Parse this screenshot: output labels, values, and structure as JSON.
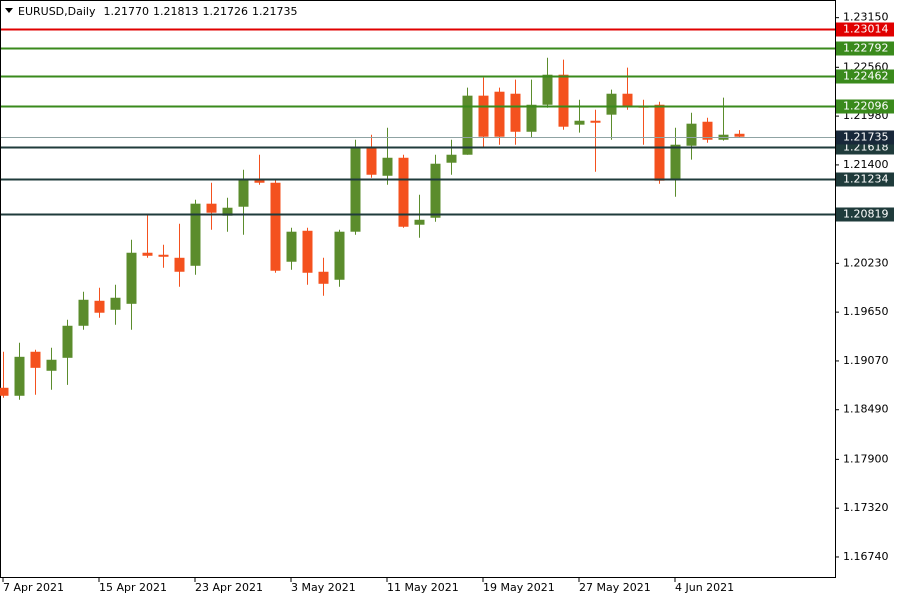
{
  "chart_data": {
    "type": "candlestick",
    "title": "EURUSD,Daily",
    "ohlc_labels": [
      "1.21770",
      "1.21813",
      "1.21726",
      "1.21735"
    ],
    "categories": [
      "7 Apr 2021",
      null,
      null,
      null,
      null,
      null,
      "15 Apr 2021",
      null,
      null,
      null,
      null,
      null,
      "23 Apr 2021",
      null,
      null,
      null,
      null,
      null,
      "3 May 2021",
      null,
      null,
      null,
      null,
      null,
      "11 May 2021",
      null,
      null,
      null,
      null,
      null,
      "19 May 2021",
      null,
      null,
      null,
      null,
      null,
      "27 May 2021",
      null,
      null,
      null,
      null,
      null,
      "4 Jun 2021",
      null,
      null,
      null,
      null
    ],
    "open": [
      1.18751,
      1.18656,
      1.19179,
      1.18953,
      1.19107,
      1.19488,
      1.19785,
      1.19678,
      1.19749,
      1.20356,
      1.20332,
      1.20296,
      1.20201,
      1.20939,
      1.20796,
      1.20903,
      1.21224,
      1.21188,
      1.20249,
      1.20617,
      1.2013,
      1.20035,
      1.20606,
      1.21616,
      1.21271,
      1.21485,
      1.20689,
      1.20772,
      1.21426,
      1.21521,
      1.22223,
      1.2227,
      1.22246,
      1.21794,
      1.22115,
      1.22472,
      1.21878,
      1.21925,
      1.21997,
      1.22246,
      1.22104,
      1.22115,
      1.21236,
      1.21628,
      1.21913,
      1.21699,
      1.2177
    ],
    "high": [
      1.19179,
      1.19286,
      1.19203,
      1.19226,
      1.19559,
      1.19892,
      1.1994,
      1.19975,
      1.2051,
      1.2082,
      1.20451,
      1.20701,
      1.20986,
      1.21188,
      1.2101,
      1.21343,
      1.21521,
      1.21224,
      1.20653,
      1.20653,
      1.20296,
      1.20629,
      1.21699,
      1.21759,
      1.21842,
      1.21521,
      1.21045,
      1.21521,
      1.21699,
      1.22318,
      1.22437,
      1.22318,
      1.22413,
      1.22413,
      1.22674,
      1.22651,
      1.22175,
      1.22056,
      1.22294,
      1.22556,
      1.22175,
      1.22151,
      1.21842,
      1.2202,
      1.21961,
      1.22199,
      1.21813
    ],
    "low": [
      1.18632,
      1.18608,
      1.18668,
      1.18727,
      1.18786,
      1.19441,
      1.19583,
      1.195,
      1.19441,
      1.20296,
      1.20178,
      1.19952,
      1.20094,
      1.20629,
      1.20606,
      1.2057,
      1.21164,
      1.20118,
      1.20154,
      1.19975,
      1.19845,
      1.19952,
      1.2057,
      1.21248,
      1.21164,
      1.20653,
      1.20534,
      1.20724,
      1.21283,
      1.21521,
      1.21604,
      1.2164,
      1.2164,
      1.21723,
      1.2208,
      1.21818,
      1.21783,
      1.21319,
      1.21699,
      1.22056,
      1.2164,
      1.21176,
      1.21022,
      1.21462,
      1.21664,
      1.21688,
      1.21726
    ],
    "close": [
      1.18656,
      1.19119,
      1.18988,
      1.19084,
      1.19488,
      1.19797,
      1.19643,
      1.19821,
      1.20356,
      1.2032,
      1.2032,
      1.2013,
      1.20939,
      1.20832,
      1.20891,
      1.21224,
      1.21188,
      1.20142,
      1.20606,
      1.20118,
      1.19987,
      1.20606,
      1.21616,
      1.21283,
      1.21485,
      1.20665,
      1.20748,
      1.21414,
      1.21521,
      1.22223,
      1.21735,
      1.21735,
      1.21794,
      1.22115,
      1.22472,
      1.21854,
      1.21925,
      1.21902,
      1.22246,
      1.22104,
      1.2208,
      1.21212,
      1.2164,
      1.2189,
      1.21699,
      1.21759,
      1.21735
    ],
    "up_color": "#5b8c2c",
    "down_color": "#f4511e",
    "levels": [
      {
        "value": 1.23014,
        "color": "#e00000"
      },
      {
        "value": 1.22792,
        "color": "#3a8a1c"
      },
      {
        "value": 1.22462,
        "color": "#3a8a1c"
      },
      {
        "value": 1.22096,
        "color": "#3a8a1c"
      },
      {
        "value": 1.21618,
        "color": "#1f3b3b"
      },
      {
        "value": 1.21234,
        "color": "#1f3b3b"
      },
      {
        "value": 1.20819,
        "color": "#1f3b3b"
      }
    ],
    "price_line_color": "#8fa3a3",
    "price_label_color": "#18283a",
    "ylim": [
      1.1649,
      1.2336
    ],
    "yticks": [
      {
        "value": 1.2315,
        "label": "1.23150"
      },
      {
        "value": 1.2256,
        "label": "1.22560"
      },
      {
        "value": 1.2198,
        "label": "1.21980"
      },
      {
        "value": 1.214,
        "label": "1.21400"
      },
      {
        "value": 1.2023,
        "label": "1.20230"
      },
      {
        "value": 1.1965,
        "label": "1.19650"
      },
      {
        "value": 1.1907,
        "label": "1.19070"
      },
      {
        "value": 1.1849,
        "label": "1.18490"
      },
      {
        "value": 1.179,
        "label": "1.17900"
      },
      {
        "value": 1.1732,
        "label": "1.17320"
      },
      {
        "value": 1.1674,
        "label": "1.16740"
      }
    ]
  }
}
